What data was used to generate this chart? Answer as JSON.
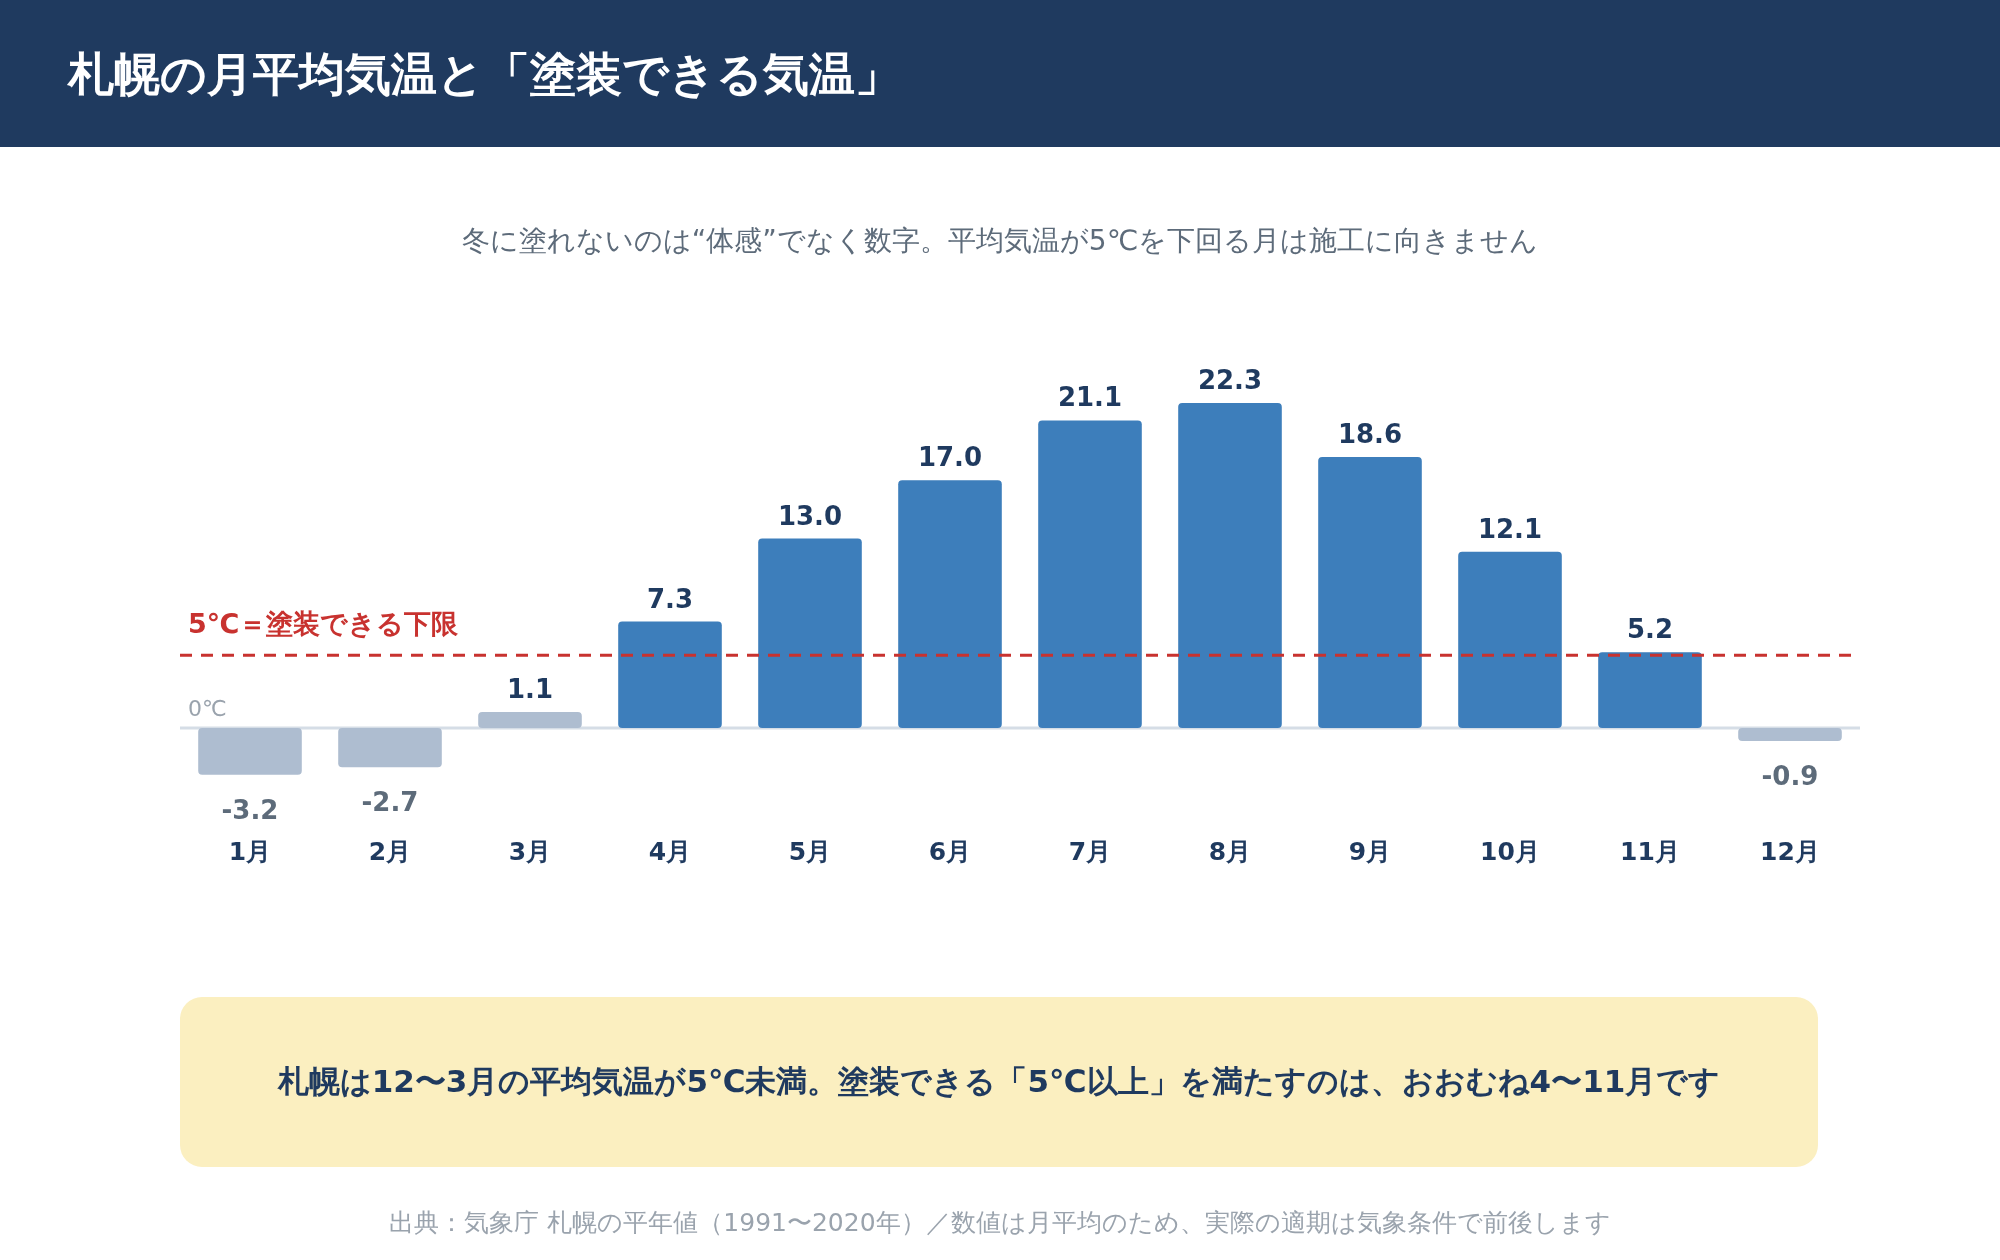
{
  "chart_data": {
    "type": "bar",
    "title": "札幌の月平均気温と「塗装できる気温」",
    "subtitle": "冬に塗れないのは“体感”でなく数字。平均気温が5℃を下回る月は施工に向きません",
    "categories": [
      "1月",
      "2月",
      "3月",
      "4月",
      "5月",
      "6月",
      "7月",
      "8月",
      "9月",
      "10月",
      "11月",
      "12月"
    ],
    "values": [
      -3.2,
      -2.7,
      1.1,
      7.3,
      13.0,
      17.0,
      21.1,
      22.3,
      18.6,
      12.1,
      5.2,
      -0.9
    ],
    "value_labels": [
      "-3.2",
      "-2.7",
      "1.1",
      "7.3",
      "13.0",
      "17.0",
      "21.1",
      "22.3",
      "18.6",
      "12.1",
      "5.2",
      "-0.9"
    ],
    "colors": [
      "#aebdd0",
      "#aebdd0",
      "#aebdd0",
      "#3d7ebb",
      "#3d7ebb",
      "#3d7ebb",
      "#3d7ebb",
      "#3d7ebb",
      "#3d7ebb",
      "#3d7ebb",
      "#3d7ebb",
      "#aebdd0"
    ],
    "ref_lines": [
      {
        "axis": "y",
        "value": 5,
        "label": "5℃＝塗装できる下限",
        "color": "#c8322f",
        "line_style": "dashed"
      },
      {
        "axis": "y",
        "value": 0,
        "label": "0℃",
        "color": "#d5dde6",
        "line_style": "solid"
      }
    ],
    "annotations": [
      "札幌は12〜3月の平均気温が5℃未満。塗装できる「5℃以上」を満たすのは、おおむね4〜11月です",
      "出典：気象庁 札幌の平年値（1991〜2020年）／数値は月平均のため、実際の適期は気象条件で前後します"
    ]
  }
}
